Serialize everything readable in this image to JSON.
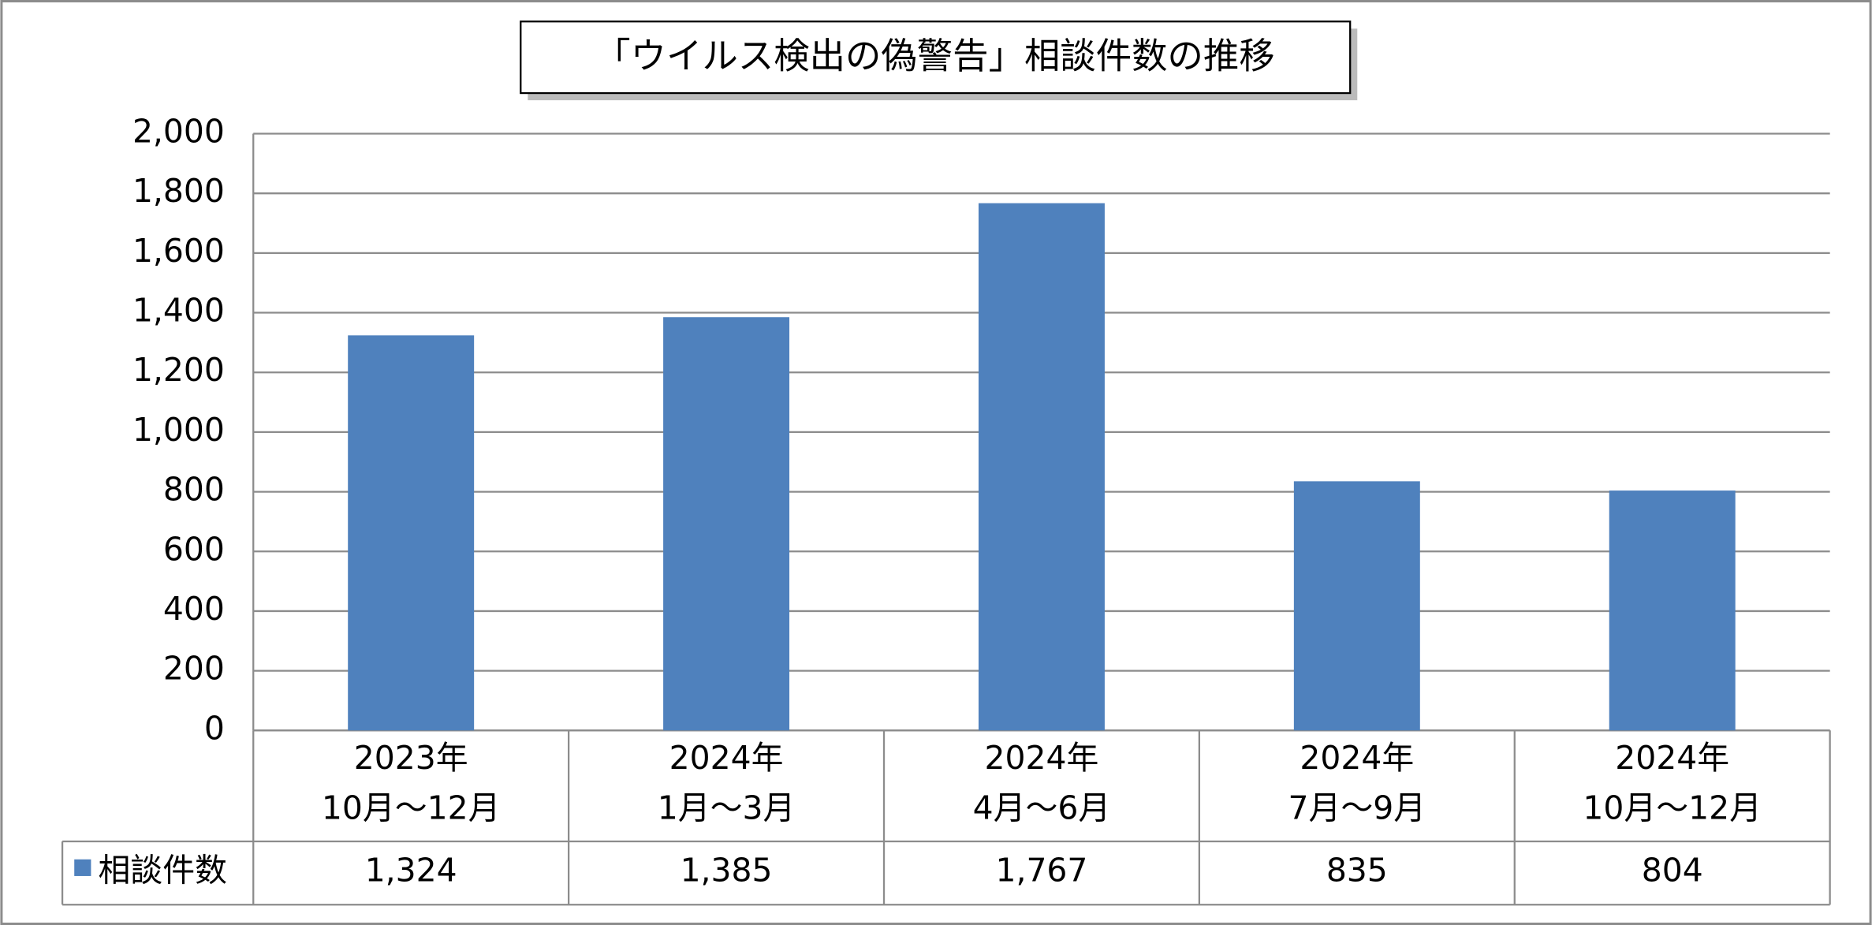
{
  "chart_data": {
    "type": "bar",
    "title": "「ウイルス検出の偽警告」相談件数の推移",
    "categories": [
      [
        "2023年",
        "10月～12月"
      ],
      [
        "2024年",
        "1月～3月"
      ],
      [
        "2024年",
        "4月～6月"
      ],
      [
        "2024年",
        "7月～9月"
      ],
      [
        "2024年",
        "10月～12月"
      ]
    ],
    "series": [
      {
        "name": "相談件数",
        "color": "#4f81bd",
        "values": [
          1324,
          1385,
          1767,
          835,
          804
        ],
        "value_labels": [
          "1,324",
          "1,385",
          "1,767",
          "835",
          "804"
        ]
      }
    ],
    "ylim": [
      0,
      2000
    ],
    "yticks": [
      0,
      200,
      400,
      600,
      800,
      {
        "value": 1000,
        "label": "1,000"
      },
      {
        "value": 1200,
        "label": "1,200"
      },
      {
        "value": 1400,
        "label": "1,400"
      },
      {
        "value": 1600,
        "label": "1,600"
      },
      {
        "value": 1800,
        "label": "1,800"
      },
      {
        "value": 2000,
        "label": "2,000"
      }
    ],
    "grid": true,
    "data_table": true
  }
}
